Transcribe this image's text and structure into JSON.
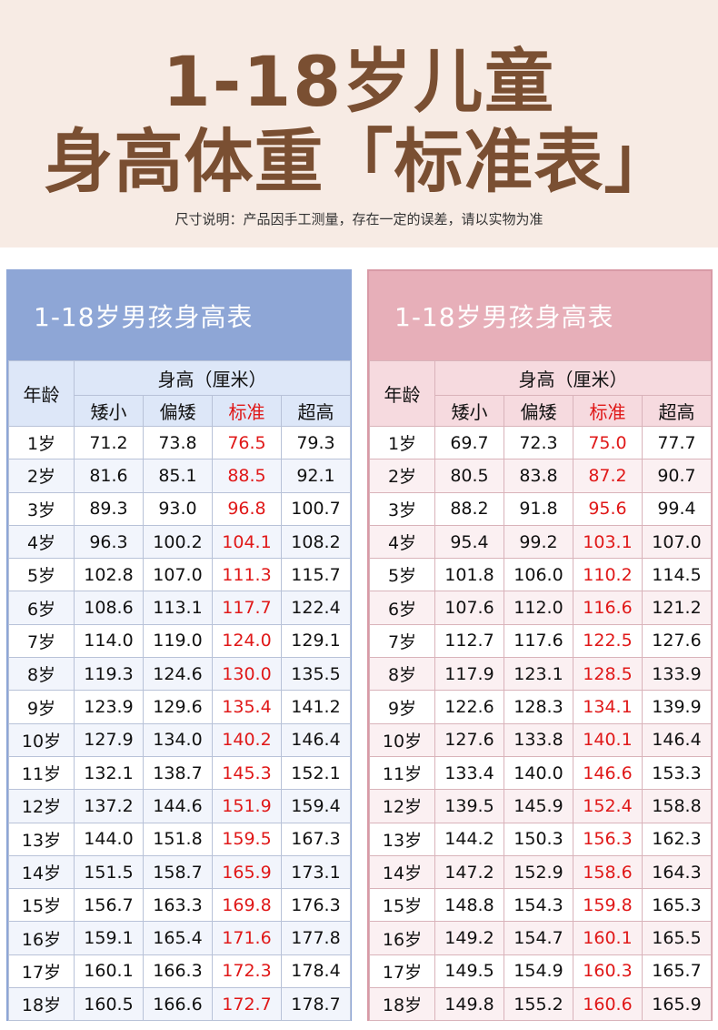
{
  "title": {
    "line1": "1-18岁儿童",
    "line2": "身高体重「标准表」",
    "note": "尺寸说明：产品因手工测量，存在一定的误差，请以实物为准"
  },
  "tables": [
    {
      "heading": "1-18岁男孩身高表",
      "age_label": "年龄",
      "group_label": "身高（厘米）",
      "columns": [
        "矮小",
        "偏矮",
        "标准",
        "超高"
      ],
      "rows": [
        {
          "age": "1岁",
          "v": [
            "71.2",
            "73.8",
            "76.5",
            "79.3"
          ]
        },
        {
          "age": "2岁",
          "v": [
            "81.6",
            "85.1",
            "88.5",
            "92.1"
          ]
        },
        {
          "age": "3岁",
          "v": [
            "89.3",
            "93.0",
            "96.8",
            "100.7"
          ]
        },
        {
          "age": "4岁",
          "v": [
            "96.3",
            "100.2",
            "104.1",
            "108.2"
          ]
        },
        {
          "age": "5岁",
          "v": [
            "102.8",
            "107.0",
            "111.3",
            "115.7"
          ]
        },
        {
          "age": "6岁",
          "v": [
            "108.6",
            "113.1",
            "117.7",
            "122.4"
          ]
        },
        {
          "age": "7岁",
          "v": [
            "114.0",
            "119.0",
            "124.0",
            "129.1"
          ]
        },
        {
          "age": "8岁",
          "v": [
            "119.3",
            "124.6",
            "130.0",
            "135.5"
          ]
        },
        {
          "age": "9岁",
          "v": [
            "123.9",
            "129.6",
            "135.4",
            "141.2"
          ]
        },
        {
          "age": "10岁",
          "v": [
            "127.9",
            "134.0",
            "140.2",
            "146.4"
          ]
        },
        {
          "age": "11岁",
          "v": [
            "132.1",
            "138.7",
            "145.3",
            "152.1"
          ]
        },
        {
          "age": "12岁",
          "v": [
            "137.2",
            "144.6",
            "151.9",
            "159.4"
          ]
        },
        {
          "age": "13岁",
          "v": [
            "144.0",
            "151.8",
            "159.5",
            "167.3"
          ]
        },
        {
          "age": "14岁",
          "v": [
            "151.5",
            "158.7",
            "165.9",
            "173.1"
          ]
        },
        {
          "age": "15岁",
          "v": [
            "156.7",
            "163.3",
            "169.8",
            "176.3"
          ]
        },
        {
          "age": "16岁",
          "v": [
            "159.1",
            "165.4",
            "171.6",
            "177.8"
          ]
        },
        {
          "age": "17岁",
          "v": [
            "160.1",
            "166.3",
            "172.3",
            "178.4"
          ]
        },
        {
          "age": "18岁",
          "v": [
            "160.5",
            "166.6",
            "172.7",
            "178.7"
          ]
        }
      ]
    },
    {
      "heading": "1-18岁男孩身高表",
      "age_label": "年龄",
      "group_label": "身高（厘米）",
      "columns": [
        "矮小",
        "偏矮",
        "标准",
        "超高"
      ],
      "rows": [
        {
          "age": "1岁",
          "v": [
            "69.7",
            "72.3",
            "75.0",
            "77.7"
          ]
        },
        {
          "age": "2岁",
          "v": [
            "80.5",
            "83.8",
            "87.2",
            "90.7"
          ]
        },
        {
          "age": "3岁",
          "v": [
            "88.2",
            "91.8",
            "95.6",
            "99.4"
          ]
        },
        {
          "age": "4岁",
          "v": [
            "95.4",
            "99.2",
            "103.1",
            "107.0"
          ]
        },
        {
          "age": "5岁",
          "v": [
            "101.8",
            "106.0",
            "110.2",
            "114.5"
          ]
        },
        {
          "age": "6岁",
          "v": [
            "107.6",
            "112.0",
            "116.6",
            "121.2"
          ]
        },
        {
          "age": "7岁",
          "v": [
            "112.7",
            "117.6",
            "122.5",
            "127.6"
          ]
        },
        {
          "age": "8岁",
          "v": [
            "117.9",
            "123.1",
            "128.5",
            "133.9"
          ]
        },
        {
          "age": "9岁",
          "v": [
            "122.6",
            "128.3",
            "134.1",
            "139.9"
          ]
        },
        {
          "age": "10岁",
          "v": [
            "127.6",
            "133.8",
            "140.1",
            "146.4"
          ]
        },
        {
          "age": "11岁",
          "v": [
            "133.4",
            "140.0",
            "146.6",
            "153.3"
          ]
        },
        {
          "age": "12岁",
          "v": [
            "139.5",
            "145.9",
            "152.4",
            "158.8"
          ]
        },
        {
          "age": "13岁",
          "v": [
            "144.2",
            "150.3",
            "156.3",
            "162.3"
          ]
        },
        {
          "age": "14岁",
          "v": [
            "147.2",
            "152.9",
            "158.6",
            "164.3"
          ]
        },
        {
          "age": "15岁",
          "v": [
            "148.8",
            "154.3",
            "159.8",
            "165.3"
          ]
        },
        {
          "age": "16岁",
          "v": [
            "149.2",
            "154.7",
            "160.1",
            "165.5"
          ]
        },
        {
          "age": "17岁",
          "v": [
            "149.5",
            "154.9",
            "160.3",
            "165.7"
          ]
        },
        {
          "age": "18岁",
          "v": [
            "149.8",
            "155.2",
            "160.6",
            "165.9"
          ]
        }
      ]
    }
  ],
  "colors": {
    "title_brown": "#7a4f32",
    "left_accent": "#8ea6d6",
    "right_accent": "#e7afb9",
    "standard_red": "#e01818"
  }
}
